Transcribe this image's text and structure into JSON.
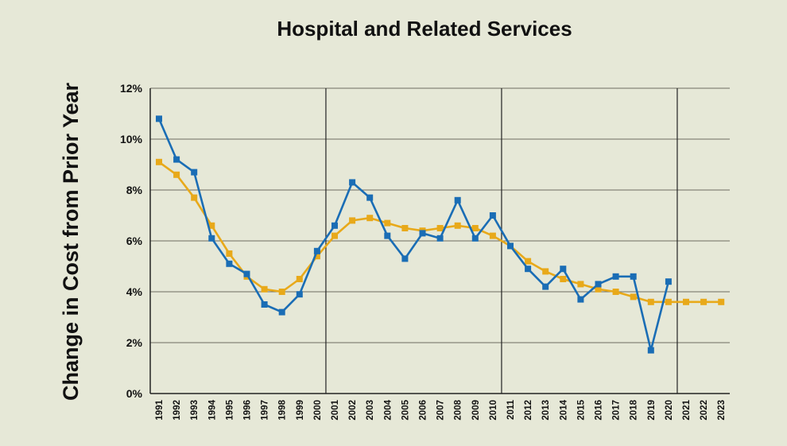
{
  "chart_data": {
    "type": "line",
    "title": "Hospital and Related Services",
    "ylabel": "Change in Cost from Prior Year",
    "xlabel": "",
    "ylim": [
      0,
      12
    ],
    "y_ticks": [
      0,
      2,
      4,
      6,
      8,
      10,
      12
    ],
    "y_tick_labels": [
      "0%",
      "2%",
      "4%",
      "6%",
      "8%",
      "10%",
      "12%"
    ],
    "grid": "horizontal",
    "vertical_dividers_after": [
      2000,
      2010,
      2020
    ],
    "categories": [
      "1991",
      "1992",
      "1993",
      "1994",
      "1995",
      "1996",
      "1997",
      "1998",
      "1999",
      "2000",
      "2001",
      "2002",
      "2003",
      "2004",
      "2005",
      "2006",
      "2007",
      "2008",
      "2009",
      "2010",
      "2011",
      "2012",
      "2013",
      "2014",
      "2015",
      "2016",
      "2017",
      "2018",
      "2019",
      "2020",
      "2021",
      "2022",
      "2023"
    ],
    "series": [
      {
        "color": "#e8a91a",
        "marker": "square",
        "values": [
          9.1,
          8.6,
          7.7,
          6.6,
          5.5,
          4.6,
          4.1,
          4.0,
          4.5,
          5.4,
          6.2,
          6.8,
          6.9,
          6.7,
          6.5,
          6.4,
          6.5,
          6.6,
          6.5,
          6.2,
          5.8,
          5.2,
          4.8,
          4.5,
          4.3,
          4.1,
          4.0,
          3.8,
          3.6,
          3.6,
          3.6,
          3.6,
          3.6
        ]
      },
      {
        "color": "#1a6db5",
        "marker": "square",
        "values": [
          10.8,
          9.2,
          8.7,
          6.1,
          5.1,
          4.7,
          3.5,
          3.2,
          3.9,
          5.6,
          6.6,
          8.3,
          7.7,
          6.2,
          5.3,
          6.3,
          6.1,
          7.6,
          6.1,
          7.0,
          5.8,
          4.9,
          4.2,
          4.9,
          3.7,
          4.3,
          4.6,
          4.6,
          1.7,
          4.4,
          null,
          null,
          null
        ]
      }
    ]
  }
}
